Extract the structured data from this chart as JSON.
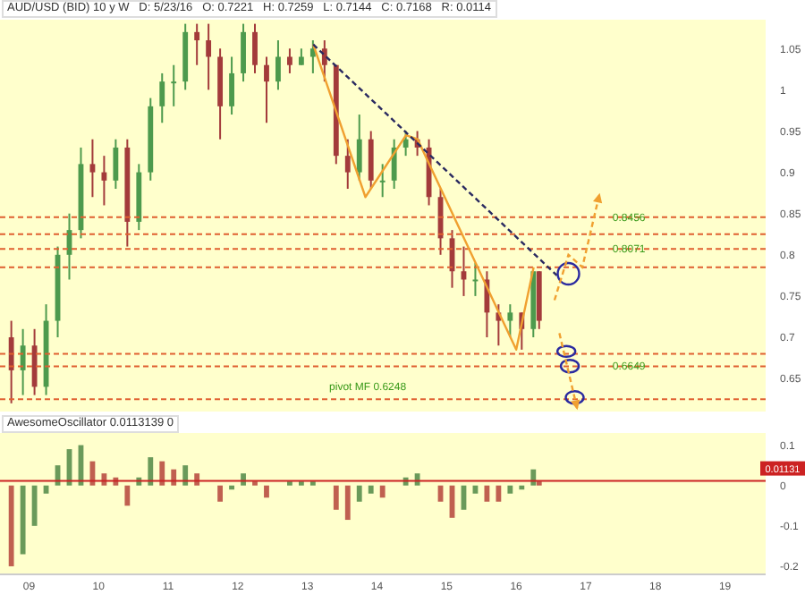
{
  "chart_data": [
    {
      "type": "candlestick",
      "title": "AUD/USD (BID) 10 y W   D: 5/23/16   O: 0.7221   H: 0.7259   L: 0.7144   C: 0.7168   R: 0.0114",
      "x": [
        "2008-10",
        "2008-12",
        "2009-02",
        "2009-04",
        "2009-06",
        "2009-08",
        "2009-10",
        "2009-12",
        "2010-02",
        "2010-04",
        "2010-06",
        "2010-08",
        "2010-10",
        "2010-12",
        "2011-02",
        "2011-04",
        "2011-06",
        "2011-08",
        "2011-10",
        "2011-12",
        "2012-02",
        "2012-04",
        "2012-06",
        "2012-08",
        "2012-10",
        "2012-12",
        "2013-02",
        "2013-04",
        "2013-06",
        "2013-08",
        "2013-10",
        "2013-12",
        "2014-02",
        "2014-04",
        "2014-06",
        "2014-08",
        "2014-10",
        "2014-12",
        "2015-02",
        "2015-04",
        "2015-06",
        "2015-08",
        "2015-10",
        "2015-12",
        "2016-02",
        "2016-04",
        "2016-05"
      ],
      "ohlc": [
        [
          0.7,
          0.72,
          0.62,
          0.66
        ],
        [
          0.66,
          0.71,
          0.63,
          0.69
        ],
        [
          0.69,
          0.71,
          0.63,
          0.64
        ],
        [
          0.64,
          0.74,
          0.63,
          0.72
        ],
        [
          0.72,
          0.81,
          0.7,
          0.8
        ],
        [
          0.8,
          0.85,
          0.77,
          0.83
        ],
        [
          0.83,
          0.93,
          0.82,
          0.91
        ],
        [
          0.91,
          0.94,
          0.87,
          0.9
        ],
        [
          0.9,
          0.92,
          0.86,
          0.89
        ],
        [
          0.89,
          0.94,
          0.88,
          0.93
        ],
        [
          0.93,
          0.94,
          0.81,
          0.84
        ],
        [
          0.84,
          0.91,
          0.83,
          0.9
        ],
        [
          0.9,
          0.99,
          0.89,
          0.98
        ],
        [
          0.98,
          1.02,
          0.96,
          1.01
        ],
        [
          1.01,
          1.03,
          0.98,
          1.01
        ],
        [
          1.01,
          1.08,
          1.0,
          1.07
        ],
        [
          1.07,
          1.08,
          1.03,
          1.06
        ],
        [
          1.06,
          1.08,
          1.0,
          1.04
        ],
        [
          1.04,
          1.05,
          0.94,
          0.98
        ],
        [
          0.98,
          1.04,
          0.97,
          1.02
        ],
        [
          1.02,
          1.08,
          1.01,
          1.07
        ],
        [
          1.07,
          1.08,
          1.02,
          1.03
        ],
        [
          1.03,
          1.04,
          0.96,
          1.01
        ],
        [
          1.01,
          1.06,
          1.0,
          1.04
        ],
        [
          1.04,
          1.05,
          1.02,
          1.03
        ],
        [
          1.03,
          1.05,
          1.03,
          1.04
        ],
        [
          1.04,
          1.06,
          1.02,
          1.05
        ],
        [
          1.05,
          1.06,
          1.01,
          1.03
        ],
        [
          1.03,
          1.03,
          0.91,
          0.92
        ],
        [
          0.92,
          0.94,
          0.88,
          0.9
        ],
        [
          0.9,
          0.97,
          0.89,
          0.94
        ],
        [
          0.94,
          0.95,
          0.88,
          0.89
        ],
        [
          0.89,
          0.91,
          0.87,
          0.89
        ],
        [
          0.89,
          0.94,
          0.88,
          0.93
        ],
        [
          0.93,
          0.95,
          0.92,
          0.94
        ],
        [
          0.94,
          0.95,
          0.92,
          0.93
        ],
        [
          0.93,
          0.94,
          0.86,
          0.87
        ],
        [
          0.87,
          0.88,
          0.8,
          0.82
        ],
        [
          0.82,
          0.83,
          0.76,
          0.78
        ],
        [
          0.78,
          0.81,
          0.75,
          0.77
        ],
        [
          0.77,
          0.79,
          0.75,
          0.77
        ],
        [
          0.77,
          0.78,
          0.7,
          0.73
        ],
        [
          0.73,
          0.74,
          0.69,
          0.72
        ],
        [
          0.72,
          0.74,
          0.7,
          0.73
        ],
        [
          0.73,
          0.73,
          0.685,
          0.71
        ],
        [
          0.71,
          0.78,
          0.7,
          0.78
        ],
        [
          0.78,
          0.78,
          0.71,
          0.72
        ]
      ],
      "colors": [
        "#a33b3b",
        "#4d9a4d",
        "#a33b3b",
        "#4d9a4d",
        "#4d9a4d",
        "#4d9a4d",
        "#4d9a4d",
        "#a33b3b",
        "#a33b3b",
        "#4d9a4d",
        "#a33b3b",
        "#4d9a4d",
        "#4d9a4d",
        "#4d9a4d",
        "#4d9a4d",
        "#4d9a4d",
        "#a33b3b",
        "#a33b3b",
        "#a33b3b",
        "#4d9a4d",
        "#4d9a4d",
        "#a33b3b",
        "#a33b3b",
        "#4d9a4d",
        "#a33b3b",
        "#4d9a4d",
        "#4d9a4d",
        "#a33b3b",
        "#a33b3b",
        "#a33b3b",
        "#4d9a4d",
        "#a33b3b",
        "#4d9a4d",
        "#4d9a4d",
        "#4d9a4d",
        "#a33b3b",
        "#a33b3b",
        "#a33b3b",
        "#a33b3b",
        "#a33b3b",
        "#4d9a4d",
        "#a33b3b",
        "#a33b3b",
        "#4d9a4d",
        "#a33b3b",
        "#4d9a4d",
        "#a33b3b"
      ],
      "series": [
        {
          "type": "line",
          "x": [
            "2013-02",
            "2013-11",
            "2014-06",
            "2014-08",
            "2016-01",
            "2016-04"
          ],
          "values": [
            1.055,
            0.87,
            0.945,
            0.94,
            0.685,
            0.785
          ],
          "color": "#f0a030"
        },
        {
          "type": "line",
          "x": [
            "2013-02",
            "2016-08"
          ],
          "values": [
            1.055,
            0.775
          ],
          "color": "#2a2a60",
          "line_style": "dashed"
        }
      ],
      "ref_lines": [
        {
          "axis": "y",
          "value": 0.8456,
          "label": "0.8456",
          "color": "#e06030",
          "line_style": "dashed"
        },
        {
          "axis": "y",
          "value": 0.825,
          "label": null,
          "color": "#e06030",
          "line_style": "dashed"
        },
        {
          "axis": "y",
          "value": 0.8071,
          "label": "0.8071",
          "color": "#e06030",
          "line_style": "dashed"
        },
        {
          "axis": "y",
          "value": 0.785,
          "label": null,
          "color": "#e06030",
          "line_style": "dashed"
        },
        {
          "axis": "y",
          "value": 0.68,
          "label": null,
          "color": "#e06030",
          "line_style": "dashed"
        },
        {
          "axis": "y",
          "value": 0.6649,
          "label": "0.6649",
          "color": "#e06030",
          "line_style": "dashed"
        },
        {
          "axis": "y",
          "value": 0.6248,
          "label": "pivot MF 0.6248",
          "color": "#e06030",
          "line_style": "dashed"
        }
      ],
      "xlim": [
        "2008-08",
        "2019-08"
      ],
      "ylim": [
        0.61,
        1.085
      ],
      "yticks": [
        0.65,
        0.7,
        0.75,
        0.8,
        0.85,
        0.9,
        0.95,
        1,
        1.05
      ],
      "tick_labels": "y"
    },
    {
      "type": "bar",
      "title": "AwesomeOscillator 0.0113139 0",
      "x": [
        "2008-10",
        "2008-12",
        "2009-02",
        "2009-04",
        "2009-06",
        "2009-08",
        "2009-10",
        "2009-12",
        "2010-02",
        "2010-04",
        "2010-06",
        "2010-08",
        "2010-10",
        "2010-12",
        "2011-02",
        "2011-04",
        "2011-06",
        "2011-08",
        "2011-10",
        "2011-12",
        "2012-02",
        "2012-04",
        "2012-06",
        "2012-08",
        "2012-10",
        "2012-12",
        "2013-02",
        "2013-04",
        "2013-06",
        "2013-08",
        "2013-10",
        "2013-12",
        "2014-02",
        "2014-04",
        "2014-06",
        "2014-08",
        "2014-10",
        "2014-12",
        "2015-02",
        "2015-04",
        "2015-06",
        "2015-08",
        "2015-10",
        "2015-12",
        "2016-02",
        "2016-04",
        "2016-05"
      ],
      "values": [
        -0.2,
        -0.17,
        -0.1,
        -0.02,
        0.05,
        0.09,
        0.1,
        0.06,
        0.03,
        0.02,
        -0.05,
        0.02,
        0.07,
        0.06,
        0.04,
        0.05,
        0.03,
        0,
        -0.04,
        -0.01,
        0.03,
        0.01,
        -0.03,
        0,
        0.01,
        0.01,
        0.01,
        0,
        -0.06,
        -0.085,
        -0.04,
        -0.02,
        -0.03,
        0,
        0.02,
        0.03,
        0,
        -0.04,
        -0.08,
        -0.06,
        -0.02,
        -0.04,
        -0.04,
        -0.02,
        -0.01,
        0.04,
        0.01
      ],
      "colors": [
        "#c06050",
        "#6a9a5a",
        "#6a9a5a",
        "#6a9a5a",
        "#6a9a5a",
        "#6a9a5a",
        "#6a9a5a",
        "#c06050",
        "#c06050",
        "#c06050",
        "#c06050",
        "#6a9a5a",
        "#6a9a5a",
        "#c06050",
        "#c06050",
        "#6a9a5a",
        "#c06050",
        "#c06050",
        "#c06050",
        "#6a9a5a",
        "#6a9a5a",
        "#c06050",
        "#c06050",
        "#6a9a5a",
        "#6a9a5a",
        "#6a9a5a",
        "#6a9a5a",
        "#c06050",
        "#c06050",
        "#c06050",
        "#6a9a5a",
        "#6a9a5a",
        "#c06050",
        "#6a9a5a",
        "#6a9a5a",
        "#6a9a5a",
        "#c06050",
        "#c06050",
        "#c06050",
        "#6a9a5a",
        "#6a9a5a",
        "#c06050",
        "#c06050",
        "#6a9a5a",
        "#6a9a5a",
        "#6a9a5a",
        "#c06050"
      ],
      "ref_lines": [
        {
          "axis": "y",
          "value": 0.01131,
          "label": "0.01131",
          "color": "#cc2222"
        }
      ],
      "xlim": [
        "2008-08",
        "2019-08"
      ],
      "xticks": [
        {
          "value": "2009",
          "label": "09"
        },
        {
          "value": "2010",
          "label": "10"
        },
        {
          "value": "2011",
          "label": "11"
        },
        {
          "value": "2012",
          "label": "12"
        },
        {
          "value": "2013",
          "label": "13"
        },
        {
          "value": "2014",
          "label": "14"
        },
        {
          "value": "2015",
          "label": "15"
        },
        {
          "value": "2016",
          "label": "16"
        },
        {
          "value": "2017",
          "label": "17"
        },
        {
          "value": "2018",
          "label": "18"
        },
        {
          "value": "2019",
          "label": "19"
        }
      ],
      "ylim": [
        -0.22,
        0.13
      ],
      "yticks": [
        0.1,
        0,
        -0.1,
        -0.2
      ]
    }
  ]
}
